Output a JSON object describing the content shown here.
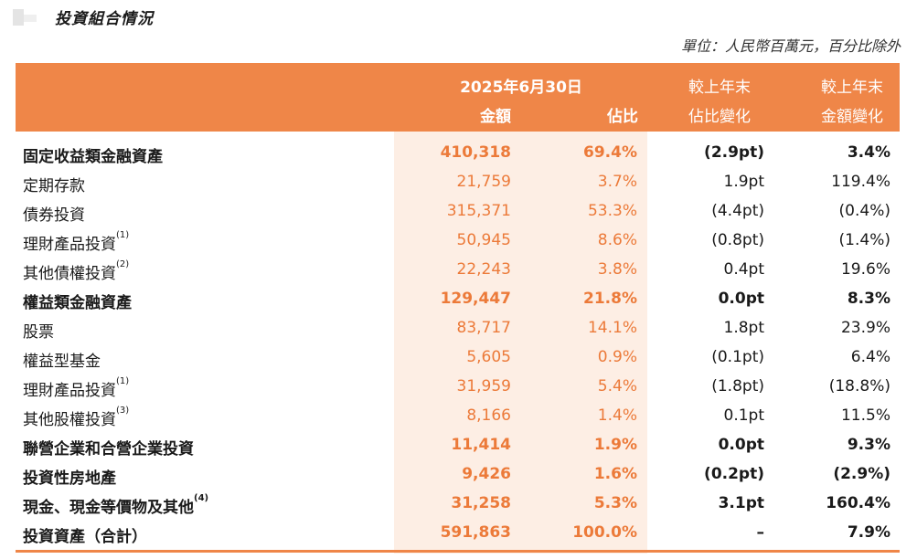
{
  "section_title": "投資組合情況",
  "unit_note": "單位：人民幣百萬元，百分比除外",
  "header": {
    "date": "2025年6月30日",
    "amount": "金額",
    "percent": "佔比",
    "change1_line1": "較上年末",
    "change1_line2": "佔比變化",
    "change2_line1": "較上年末",
    "change2_line2": "金額變化"
  },
  "rows": [
    {
      "label": "固定收益類金融資產",
      "note": "",
      "amount": "410,318",
      "percent": "69.4%",
      "change_pct": "(2.9pt)",
      "change_amt": "3.4%",
      "bold": true
    },
    {
      "label": "定期存款",
      "note": "",
      "amount": "21,759",
      "percent": "3.7%",
      "change_pct": "1.9pt",
      "change_amt": "119.4%",
      "bold": false
    },
    {
      "label": "債券投資",
      "note": "",
      "amount": "315,371",
      "percent": "53.3%",
      "change_pct": "(4.4pt)",
      "change_amt": "(0.4%)",
      "bold": false
    },
    {
      "label": "理財產品投資",
      "note": "(1)",
      "amount": "50,945",
      "percent": "8.6%",
      "change_pct": "(0.8pt)",
      "change_amt": "(1.4%)",
      "bold": false
    },
    {
      "label": "其他債權投資",
      "note": "(2)",
      "amount": "22,243",
      "percent": "3.8%",
      "change_pct": "0.4pt",
      "change_amt": "19.6%",
      "bold": false
    },
    {
      "label": "權益類金融資產",
      "note": "",
      "amount": "129,447",
      "percent": "21.8%",
      "change_pct": "0.0pt",
      "change_amt": "8.3%",
      "bold": true
    },
    {
      "label": "股票",
      "note": "",
      "amount": "83,717",
      "percent": "14.1%",
      "change_pct": "1.8pt",
      "change_amt": "23.9%",
      "bold": false
    },
    {
      "label": "權益型基金",
      "note": "",
      "amount": "5,605",
      "percent": "0.9%",
      "change_pct": "(0.1pt)",
      "change_amt": "6.4%",
      "bold": false
    },
    {
      "label": "理財產品投資",
      "note": "(1)",
      "amount": "31,959",
      "percent": "5.4%",
      "change_pct": "(1.8pt)",
      "change_amt": "(18.8%)",
      "bold": false
    },
    {
      "label": "其他股權投資",
      "note": "(3)",
      "amount": "8,166",
      "percent": "1.4%",
      "change_pct": "0.1pt",
      "change_amt": "11.5%",
      "bold": false
    },
    {
      "label": "聯營企業和合營企業投資",
      "note": "",
      "amount": "11,414",
      "percent": "1.9%",
      "change_pct": "0.0pt",
      "change_amt": "9.3%",
      "bold": true
    },
    {
      "label": "投資性房地產",
      "note": "",
      "amount": "9,426",
      "percent": "1.6%",
      "change_pct": "(0.2pt)",
      "change_amt": "(2.9%)",
      "bold": true
    },
    {
      "label": "現金、現金等價物及其他",
      "note": "(4)",
      "amount": "31,258",
      "percent": "5.3%",
      "change_pct": "3.1pt",
      "change_amt": "160.4%",
      "bold": true
    },
    {
      "label": "投資資產（合計）",
      "note": "",
      "amount": "591,863",
      "percent": "100.0%",
      "change_pct": "–",
      "change_amt": "7.9%",
      "bold": true
    }
  ]
}
